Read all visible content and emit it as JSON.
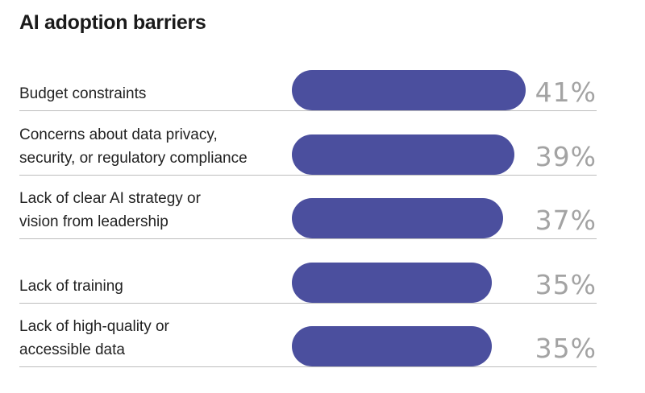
{
  "chart_data": {
    "type": "bar",
    "orientation": "horizontal",
    "title": "AI adoption barriers",
    "categories": [
      [
        "Budget constraints"
      ],
      [
        "Concerns about data privacy,",
        "security, or regulatory compliance"
      ],
      [
        "Lack of clear AI strategy or",
        "vision from leadership"
      ],
      [
        "Lack of training"
      ],
      [
        "Lack of high-quality or",
        "accessible data"
      ]
    ],
    "values": [
      41,
      39,
      37,
      35,
      35
    ],
    "value_labels": [
      "41%",
      "39%",
      "37%",
      "35%",
      "35%"
    ],
    "unit": "%",
    "bar_color": "#4b4f9e",
    "value_color": "#a3a3a3"
  }
}
